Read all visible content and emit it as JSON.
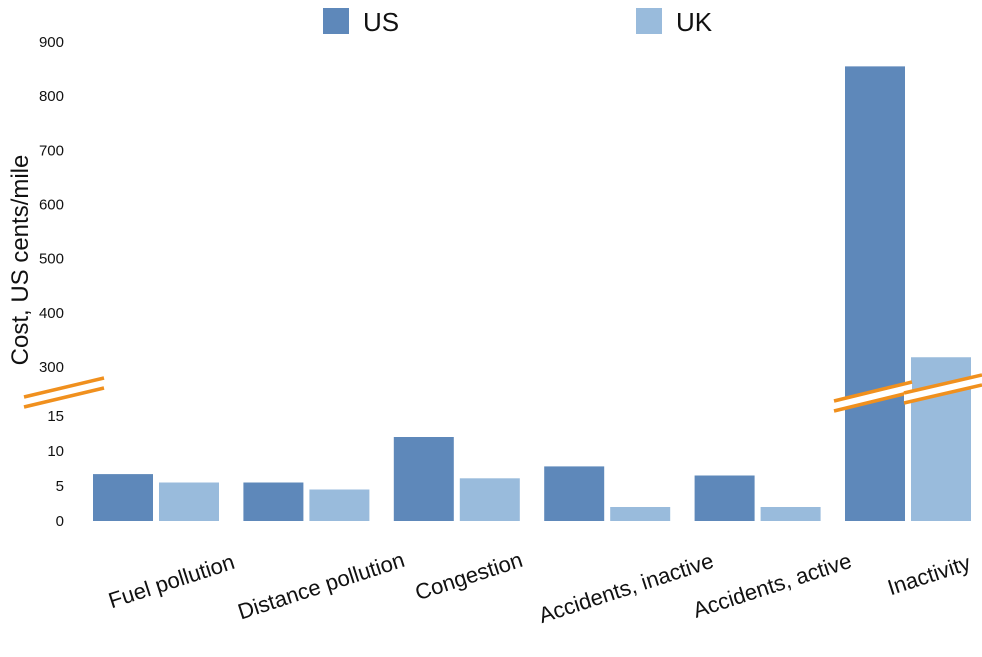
{
  "chart_data": {
    "type": "bar",
    "ylabel": "Cost, US cents/mile",
    "categories": [
      "Fuel pollution",
      "Distance pollution",
      "Congestion",
      "Accidents, inactive",
      "Accidents, active",
      "Inactivity"
    ],
    "series": [
      {
        "name": "US",
        "color": "#5e88ba",
        "values": [
          6.7,
          5.5,
          12,
          7.8,
          6.5,
          855
        ]
      },
      {
        "name": "UK",
        "color": "#99bbdc",
        "values": [
          5.5,
          4.5,
          6.1,
          2,
          2,
          318
        ]
      }
    ],
    "axis_break": {
      "lower_range": [
        0,
        15
      ],
      "upper_range": [
        300,
        900
      ],
      "color": "#f0901e"
    },
    "y_ticks_lower": [
      0,
      5,
      10,
      15
    ],
    "y_ticks_upper": [
      300,
      400,
      500,
      600,
      700,
      800,
      900
    ],
    "legend_position": "top",
    "grid": false
  }
}
